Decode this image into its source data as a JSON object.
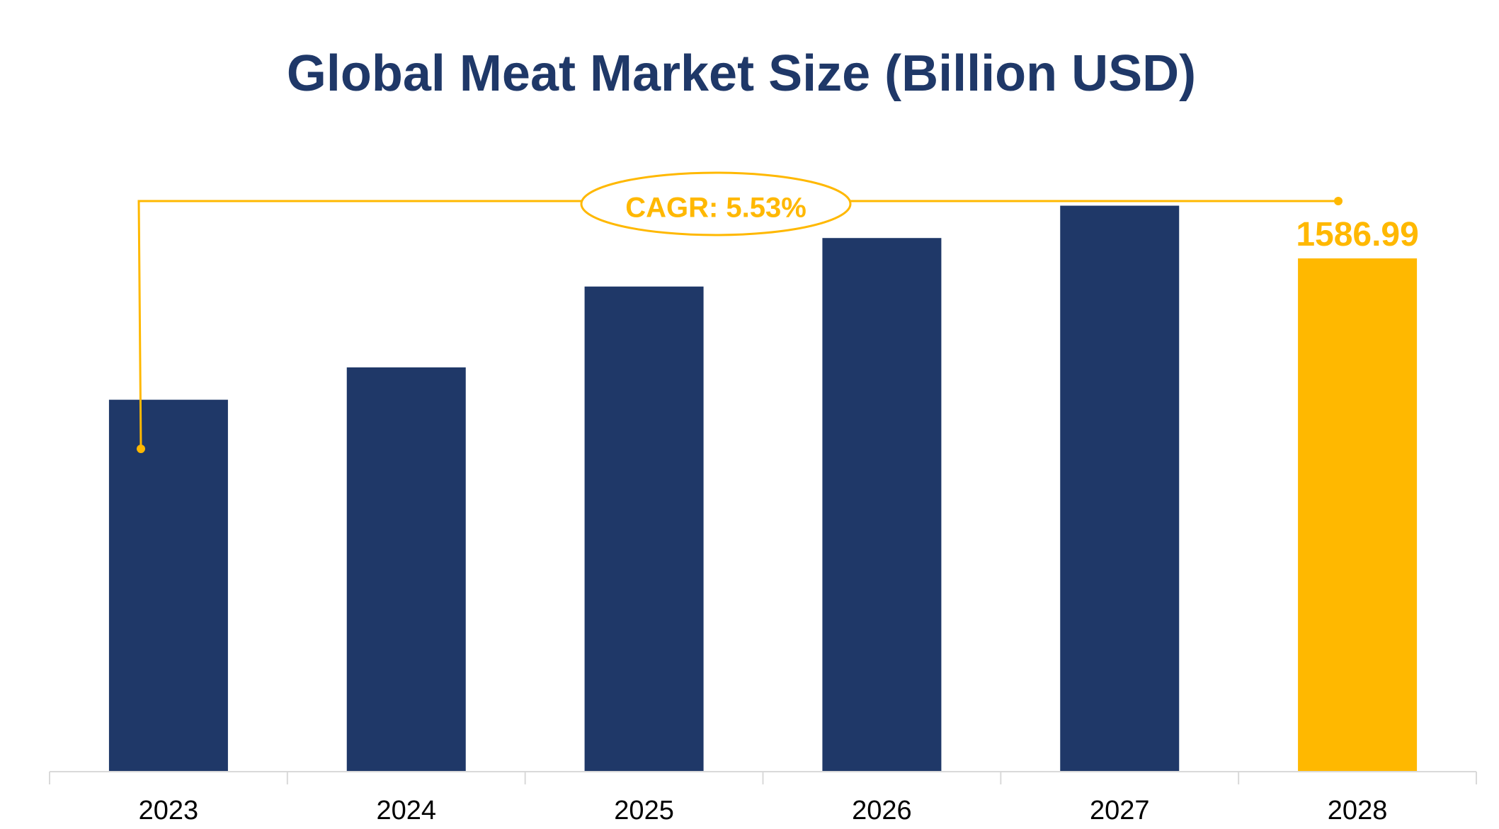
{
  "chart_data": {
    "type": "bar",
    "title": "Global Meat Market Size (Billion USD)",
    "xlabel": "",
    "ylabel": "",
    "categories": [
      "2023",
      "2024",
      "2025",
      "2026",
      "2027",
      "2028"
    ],
    "values": [
      1150,
      1250,
      1500,
      1650,
      1750,
      1586.99
    ],
    "highlight_index": 5,
    "highlight_label": "1586.99",
    "annotation": "CAGR: 5.53%",
    "grid": false,
    "legend": "none",
    "colors": {
      "bar": "#1f3868",
      "highlight": "#ffb800",
      "title": "#1f3868",
      "axis": "#d9d9d9",
      "tick": "#000000"
    }
  }
}
